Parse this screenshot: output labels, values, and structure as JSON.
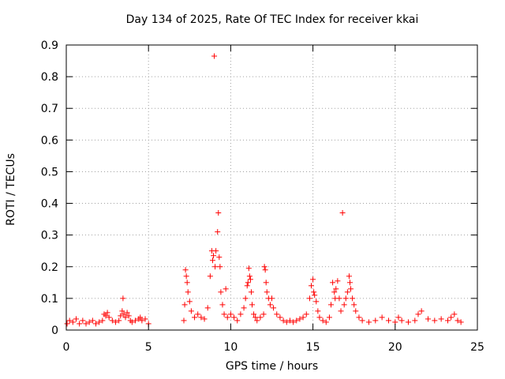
{
  "chart_data": {
    "type": "scatter",
    "title": "Day 134 of 2025, Rate Of TEC Index for receiver kkai",
    "xlabel": "GPS time / hours",
    "ylabel": "ROTI / TECUs",
    "xlim": [
      0,
      25
    ],
    "ylim": [
      0,
      0.9
    ],
    "xticks": [
      0,
      5,
      10,
      15,
      20,
      25
    ],
    "yticks": [
      0,
      0.1,
      0.2,
      0.3,
      0.4,
      0.5,
      0.6,
      0.7,
      0.8,
      0.9
    ],
    "grid": true,
    "marker": "+",
    "color": "#ff0000",
    "series": [
      {
        "x": [
          0.05,
          0.2,
          0.4,
          0.6,
          0.8,
          1.0,
          1.2,
          1.4,
          1.6,
          1.8,
          2.0,
          2.2,
          2.3,
          2.4,
          2.5,
          2.6,
          2.8,
          3.0,
          3.2,
          3.3,
          3.4,
          3.45,
          3.5,
          3.6,
          3.7,
          3.8,
          3.9,
          4.0,
          4.2,
          4.4,
          4.5,
          4.6,
          4.8,
          5.0,
          7.15,
          7.2,
          7.25,
          7.3,
          7.35,
          7.4,
          7.5,
          7.6,
          7.8,
          8.0,
          8.2,
          8.4,
          8.6,
          8.75,
          8.85,
          8.9,
          8.95,
          9.0,
          9.05,
          9.1,
          9.2,
          9.25,
          9.3,
          9.35,
          9.4,
          9.5,
          9.6,
          9.7,
          9.8,
          10.0,
          10.2,
          10.4,
          10.6,
          10.8,
          10.9,
          11.0,
          11.05,
          11.1,
          11.15,
          11.2,
          11.25,
          11.3,
          11.4,
          11.5,
          11.6,
          11.8,
          12.0,
          12.05,
          12.1,
          12.15,
          12.2,
          12.3,
          12.4,
          12.5,
          12.6,
          12.8,
          13.0,
          13.2,
          13.4,
          13.6,
          13.8,
          14.0,
          14.2,
          14.4,
          14.6,
          14.8,
          14.9,
          15.0,
          15.05,
          15.1,
          15.2,
          15.3,
          15.4,
          15.6,
          15.8,
          16.0,
          16.1,
          16.2,
          16.3,
          16.35,
          16.4,
          16.5,
          16.6,
          16.7,
          16.8,
          16.9,
          17.0,
          17.1,
          17.2,
          17.25,
          17.3,
          17.4,
          17.5,
          17.6,
          17.8,
          18.0,
          18.4,
          18.8,
          19.2,
          19.6,
          20.0,
          20.2,
          20.4,
          20.8,
          21.2,
          21.4,
          21.6,
          22.0,
          22.4,
          22.8,
          23.2,
          23.4,
          23.6,
          23.8,
          24.0
        ],
        "y": [
          0.02,
          0.03,
          0.025,
          0.035,
          0.02,
          0.03,
          0.02,
          0.025,
          0.03,
          0.02,
          0.025,
          0.03,
          0.05,
          0.045,
          0.055,
          0.04,
          0.03,
          0.025,
          0.03,
          0.045,
          0.06,
          0.1,
          0.05,
          0.04,
          0.055,
          0.045,
          0.03,
          0.025,
          0.03,
          0.035,
          0.04,
          0.03,
          0.035,
          0.02,
          0.03,
          0.08,
          0.19,
          0.17,
          0.15,
          0.12,
          0.09,
          0.06,
          0.04,
          0.05,
          0.04,
          0.035,
          0.07,
          0.17,
          0.25,
          0.22,
          0.235,
          0.865,
          0.2,
          0.25,
          0.31,
          0.37,
          0.23,
          0.2,
          0.12,
          0.08,
          0.05,
          0.13,
          0.04,
          0.05,
          0.04,
          0.03,
          0.05,
          0.07,
          0.1,
          0.14,
          0.15,
          0.195,
          0.17,
          0.16,
          0.12,
          0.08,
          0.05,
          0.04,
          0.03,
          0.04,
          0.05,
          0.2,
          0.19,
          0.15,
          0.12,
          0.1,
          0.08,
          0.1,
          0.07,
          0.05,
          0.04,
          0.03,
          0.025,
          0.03,
          0.025,
          0.03,
          0.035,
          0.04,
          0.05,
          0.1,
          0.14,
          0.16,
          0.12,
          0.11,
          0.09,
          0.06,
          0.04,
          0.03,
          0.025,
          0.04,
          0.08,
          0.15,
          0.12,
          0.1,
          0.13,
          0.155,
          0.1,
          0.06,
          0.37,
          0.08,
          0.1,
          0.12,
          0.17,
          0.15,
          0.13,
          0.1,
          0.08,
          0.06,
          0.04,
          0.03,
          0.025,
          0.03,
          0.04,
          0.03,
          0.025,
          0.04,
          0.03,
          0.025,
          0.03,
          0.05,
          0.06,
          0.035,
          0.03,
          0.035,
          0.03,
          0.04,
          0.05,
          0.03,
          0.025
        ]
      }
    ]
  }
}
